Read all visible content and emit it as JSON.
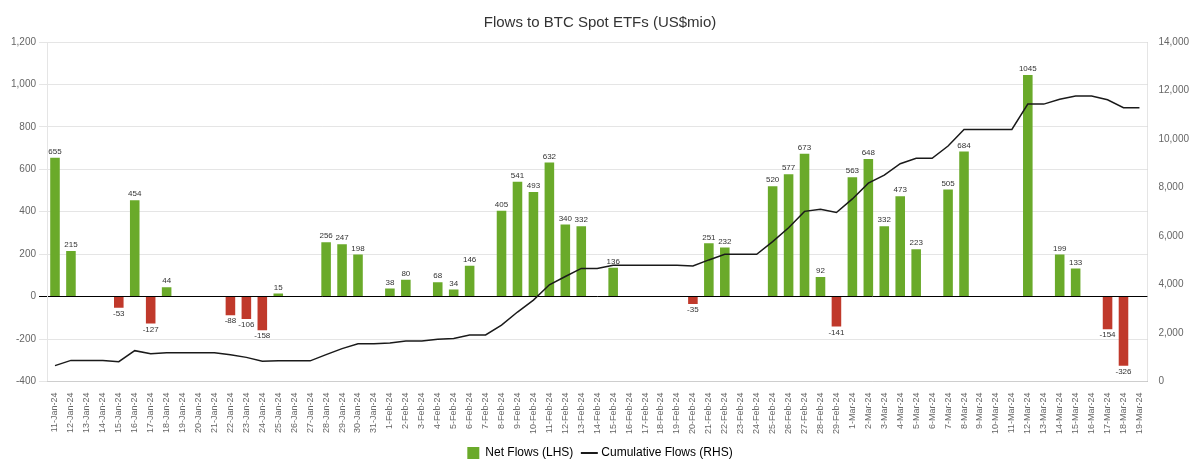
{
  "chart_data": {
    "type": "bar",
    "title": "Flows to BTC Spot ETFs (US$mio)",
    "categories": [
      "11-Jan-24",
      "12-Jan-24",
      "13-Jan-24",
      "14-Jan-24",
      "15-Jan-24",
      "16-Jan-24",
      "17-Jan-24",
      "18-Jan-24",
      "19-Jan-24",
      "20-Jan-24",
      "21-Jan-24",
      "22-Jan-24",
      "23-Jan-24",
      "24-Jan-24",
      "25-Jan-24",
      "26-Jan-24",
      "27-Jan-24",
      "28-Jan-24",
      "29-Jan-24",
      "30-Jan-24",
      "31-Jan-24",
      "1-Feb-24",
      "2-Feb-24",
      "3-Feb-24",
      "4-Feb-24",
      "5-Feb-24",
      "6-Feb-24",
      "7-Feb-24",
      "8-Feb-24",
      "9-Feb-24",
      "10-Feb-24",
      "11-Feb-24",
      "12-Feb-24",
      "13-Feb-24",
      "14-Feb-24",
      "15-Feb-24",
      "16-Feb-24",
      "17-Feb-24",
      "18-Feb-24",
      "19-Feb-24",
      "20-Feb-24",
      "21-Feb-24",
      "22-Feb-24",
      "23-Feb-24",
      "24-Feb-24",
      "25-Feb-24",
      "26-Feb-24",
      "27-Feb-24",
      "28-Feb-24",
      "29-Feb-24",
      "1-Mar-24",
      "2-Mar-24",
      "3-Mar-24",
      "4-Mar-24",
      "5-Mar-24",
      "6-Mar-24",
      "7-Mar-24",
      "8-Mar-24",
      "9-Mar-24",
      "10-Mar-24",
      "11-Mar-24",
      "12-Mar-24",
      "13-Mar-24",
      "14-Mar-24",
      "15-Mar-24",
      "16-Mar-24",
      "17-Mar-24",
      "18-Mar-24",
      "19-Mar-24"
    ],
    "series": [
      {
        "name": "Net Flows (LHS)",
        "type": "bar",
        "axis": "y",
        "color": "#6aaa2a",
        "colors": [
          "#6aaa2a",
          "#6aaa2a",
          "#6aaa2a",
          "#6aaa2a",
          "#c0392b",
          "#6aaa2a",
          "#c0392b",
          "#6aaa2a",
          "#6aaa2a",
          "#6aaa2a",
          "#6aaa2a",
          "#c0392b",
          "#c0392b",
          "#c0392b",
          "#6aaa2a",
          "#6aaa2a",
          "#6aaa2a",
          "#6aaa2a",
          "#6aaa2a",
          "#6aaa2a",
          "#6aaa2a",
          "#6aaa2a",
          "#6aaa2a",
          "#6aaa2a",
          "#6aaa2a",
          "#6aaa2a",
          "#6aaa2a",
          "#6aaa2a",
          "#6aaa2a",
          "#6aaa2a",
          "#6aaa2a",
          "#6aaa2a",
          "#6aaa2a",
          "#6aaa2a",
          "#6aaa2a",
          "#6aaa2a",
          "#6aaa2a",
          "#6aaa2a",
          "#6aaa2a",
          "#6aaa2a",
          "#c0392b",
          "#6aaa2a",
          "#6aaa2a",
          "#6aaa2a",
          "#6aaa2a",
          "#6aaa2a",
          "#6aaa2a",
          "#6aaa2a",
          "#6aaa2a",
          "#c0392b",
          "#6aaa2a",
          "#6aaa2a",
          "#6aaa2a",
          "#6aaa2a",
          "#6aaa2a",
          "#6aaa2a",
          "#6aaa2a",
          "#6aaa2a",
          "#6aaa2a",
          "#6aaa2a",
          "#6aaa2a",
          "#6aaa2a",
          "#6aaa2a",
          "#6aaa2a",
          "#6aaa2a",
          "#6aaa2a",
          "#c0392b",
          "#c0392b",
          "#6aaa2a"
        ],
        "values": [
          655,
          215,
          0,
          0,
          -53,
          454,
          -127,
          44,
          0,
          0,
          0,
          -88,
          -106,
          -158,
          15,
          0,
          0,
          256,
          247,
          198,
          0,
          38,
          80,
          0,
          68,
          34,
          146,
          0,
          405,
          541,
          493,
          632,
          340,
          332,
          0,
          136,
          0,
          0,
          0,
          0,
          -35,
          251,
          232,
          0,
          0,
          520,
          577,
          673,
          92,
          -141,
          563,
          648,
          332,
          473,
          223,
          0,
          505,
          684,
          0,
          0,
          0,
          1045,
          0,
          199,
          133,
          0,
          -154,
          -326,
          0
        ],
        "value_labels": [
          "655",
          "215",
          null,
          null,
          "-53",
          "454",
          "-127",
          "44",
          null,
          null,
          null,
          "-88",
          "-106",
          "-158",
          "15",
          null,
          null,
          "256",
          "247",
          "198",
          null,
          "38",
          "80",
          null,
          "68",
          "34",
          "146",
          null,
          "405",
          "541",
          "493",
          "632",
          "340",
          "332",
          null,
          "136",
          null,
          null,
          null,
          null,
          "-35",
          "251",
          "232",
          null,
          null,
          "520",
          "577",
          "673",
          "92",
          "-141",
          "563",
          "648",
          "332",
          "473",
          "223",
          null,
          "505",
          "684",
          null,
          null,
          null,
          "1045",
          null,
          "199",
          "133",
          null,
          "-154",
          "-326",
          null
        ]
      },
      {
        "name": "Cumulative Flows (RHS)",
        "type": "line",
        "axis": "y2",
        "color": "#1a1a1a",
        "values": [
          655,
          870,
          870,
          870,
          817,
          1271,
          1144,
          1188,
          1188,
          1188,
          1188,
          1100,
          994,
          836,
          851,
          851,
          851,
          1107,
          1354,
          1552,
          1552,
          1590,
          1670,
          1670,
          1738,
          1772,
          1918,
          1918,
          2323,
          2864,
          3357,
          3989,
          4329,
          4661,
          4661,
          4797,
          4797,
          4797,
          4797,
          4797,
          4762,
          5013,
          5245,
          5245,
          5245,
          5765,
          6342,
          7015,
          7107,
          6966,
          7529,
          8177,
          8509,
          8982,
          9205,
          9205,
          9710,
          10394,
          10394,
          10394,
          10394,
          11439,
          11439,
          11638,
          11771,
          11771,
          11617,
          11291,
          11291
        ]
      }
    ],
    "data_labels": true,
    "ylim": [
      -400,
      1200
    ],
    "yticks": [
      -400,
      -200,
      0,
      200,
      400,
      600,
      800,
      {
        "value": 1000,
        "label": "1,000"
      },
      {
        "value": 1200,
        "label": "1,200"
      }
    ],
    "y2lim": [
      0,
      14000
    ],
    "y2ticks": [
      0,
      {
        "value": 2000,
        "label": "2,000"
      },
      {
        "value": 4000,
        "label": "4,000"
      },
      {
        "value": 6000,
        "label": "6,000"
      },
      {
        "value": 8000,
        "label": "8,000"
      },
      {
        "value": 10000,
        "label": "10,000"
      },
      {
        "value": 12000,
        "label": "12,000"
      },
      {
        "value": 14000,
        "label": "14,000"
      }
    ],
    "grid": true,
    "legend": "bottom"
  }
}
